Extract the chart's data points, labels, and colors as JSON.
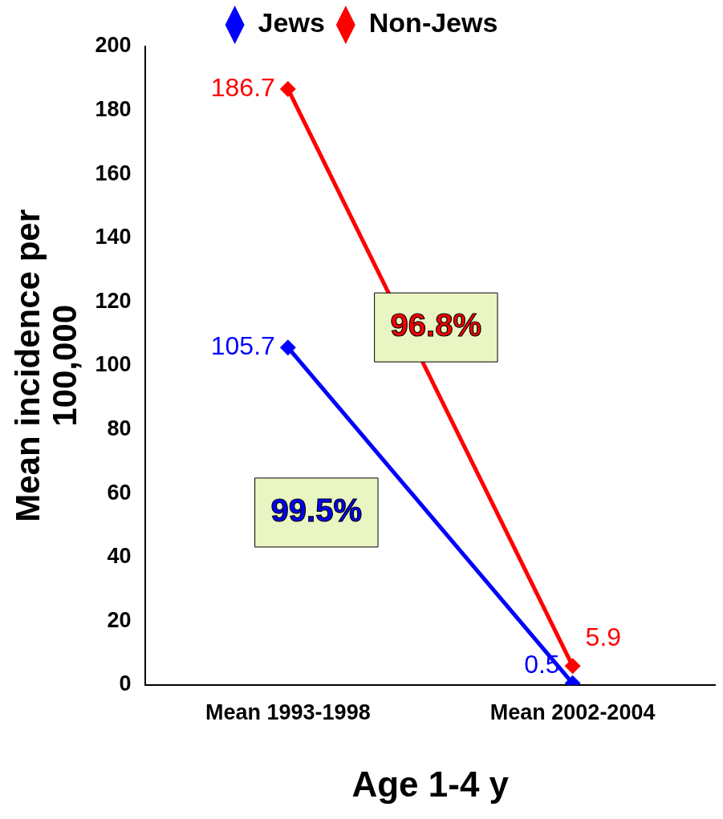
{
  "chart_data": {
    "type": "line",
    "xlabel": "Age 1-4 y",
    "ylabel": "Mean incidence per 100,000",
    "categories": [
      "Mean 1993-1998",
      "Mean 2002-2004"
    ],
    "series": [
      {
        "name": "Jews",
        "color": "#0000ff",
        "values": [
          105.7,
          0.5
        ]
      },
      {
        "name": "Non-Jews",
        "color": "#ff0000",
        "values": [
          186.7,
          5.9
        ]
      }
    ],
    "annotations": [
      "99.5%",
      "96.8%"
    ],
    "ylim": [
      0,
      200
    ],
    "yticks": [
      0,
      20,
      40,
      60,
      80,
      100,
      120,
      140,
      160,
      180,
      200
    ],
    "data_labels": true,
    "legend": "top",
    "marker": "diamond",
    "grid": false,
    "line_style": "solid"
  }
}
